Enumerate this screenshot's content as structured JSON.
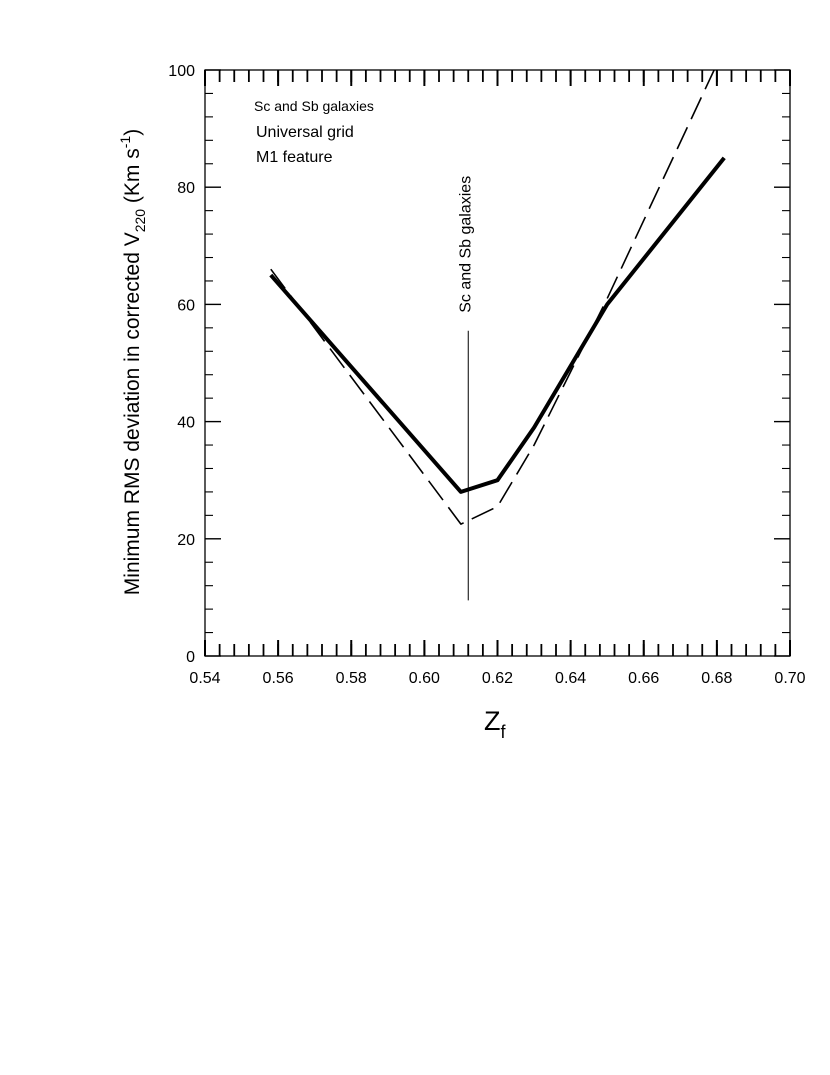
{
  "chart_data": {
    "type": "line",
    "xlabel": "Z",
    "xlabel_sub": "f",
    "ylabel_parts": {
      "pre": "Minimum RMS deviation in corrected V",
      "sub": "220",
      "mid": " (Km s",
      "sup": "-1",
      "post": ")"
    },
    "xlim": [
      0.54,
      0.7
    ],
    "ylim": [
      0,
      100
    ],
    "xticks": [
      0.54,
      0.56,
      0.58,
      0.6,
      0.62,
      0.64,
      0.66,
      0.68,
      0.7
    ],
    "xtick_labels": [
      "0.54",
      "0.56",
      "0.58",
      "0.60",
      "0.62",
      "0.64",
      "0.66",
      "0.68",
      "0.70"
    ],
    "yticks": [
      0,
      20,
      40,
      60,
      80,
      100
    ],
    "ytick_labels": [
      "0",
      "20",
      "40",
      "60",
      "80",
      "100"
    ],
    "annotations": [
      "Sc and Sb galaxies",
      "Universal grid",
      "M1 feature"
    ],
    "vline": {
      "x": 0.612,
      "y_range": [
        9.5,
        55.5
      ],
      "label": "Sc and Sb galaxies"
    },
    "series": [
      {
        "style": "solid-thick",
        "x": [
          0.558,
          0.61,
          0.62,
          0.63,
          0.65,
          0.682
        ],
        "y": [
          65,
          28,
          30,
          39,
          60,
          85
        ]
      },
      {
        "style": "dashed",
        "x": [
          0.558,
          0.61,
          0.62,
          0.63,
          0.65,
          0.68
        ],
        "y": [
          66,
          22.5,
          25.5,
          36,
          61,
          101
        ]
      }
    ]
  }
}
